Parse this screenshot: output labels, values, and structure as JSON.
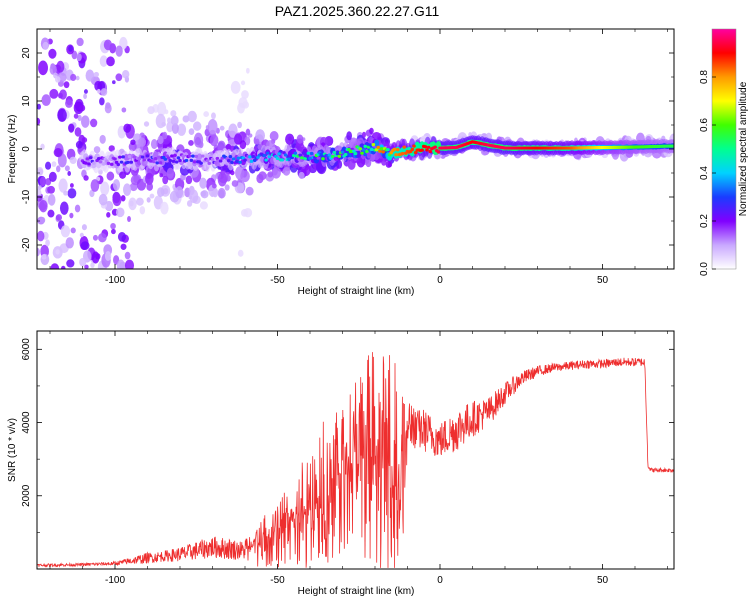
{
  "title": "PAZ1.2025.360.22.27.G11",
  "chart_data": [
    {
      "type": "heatmap",
      "xlabel": "Height of straight line (km)",
      "ylabel": "Frequency (Hz)",
      "xlim": [
        -124,
        72
      ],
      "ylim": [
        -25,
        25
      ],
      "xticks": [
        -100,
        -50,
        0,
        50
      ],
      "yticks": [
        -20,
        -10,
        0,
        10,
        20
      ],
      "colorbar": {
        "label": "Normalized spectral amplitude",
        "range": [
          0,
          1
        ],
        "ticks": [
          "0.0",
          "0.2",
          "0.4",
          "0.6",
          "0.8"
        ],
        "colors": [
          "#ffffff",
          "#c9a8ff",
          "#8000ff",
          "#1a3cff",
          "#00d2ff",
          "#00ff90",
          "#40ff00",
          "#ffff00",
          "#ff9a00",
          "#ff0000",
          "#ff00a0"
        ]
      },
      "ridge": {
        "x": [
          -100,
          -90,
          -80,
          -70,
          -60,
          -50,
          -40,
          -30,
          -20,
          -15,
          -10,
          -5,
          0,
          5,
          10,
          15,
          20,
          30,
          40,
          50,
          60,
          70
        ],
        "frequency": [
          -2.5,
          -2.2,
          -2.0,
          -2.3,
          -2.0,
          -1.5,
          -1.5,
          -1.0,
          0.5,
          -1.0,
          0.0,
          0.0,
          0.2,
          0.3,
          1.5,
          0.8,
          0.2,
          0.2,
          0.2,
          0.3,
          0.4,
          0.6
        ],
        "amplitude": [
          0.2,
          0.25,
          0.25,
          0.2,
          0.3,
          0.4,
          0.45,
          0.5,
          0.6,
          0.8,
          0.85,
          0.9,
          0.95,
          0.95,
          0.9,
          0.95,
          0.95,
          0.9,
          0.85,
          0.7,
          0.6,
          0.55
        ]
      }
    },
    {
      "type": "line",
      "xlabel": "Height of straight line (km)",
      "ylabel": "SNR (10 * v/v)",
      "xlim": [
        -124,
        72
      ],
      "ylim": [
        0,
        6500
      ],
      "xticks": [
        -100,
        -50,
        0,
        50
      ],
      "yticks": [
        2000,
        4000,
        6000
      ],
      "color": "#ee2e2e",
      "series": [
        {
          "name": "SNR",
          "x": [
            -124,
            -110,
            -100,
            -90,
            -85,
            -80,
            -75,
            -70,
            -65,
            -60,
            -55,
            -50,
            -45,
            -40,
            -35,
            -30,
            -25,
            -20,
            -15,
            -12,
            -10,
            -5,
            0,
            5,
            10,
            15,
            20,
            25,
            30,
            35,
            40,
            45,
            50,
            55,
            60,
            63,
            64,
            65,
            70,
            72
          ],
          "y": [
            100,
            120,
            150,
            300,
            350,
            400,
            500,
            600,
            550,
            500,
            700,
            1000,
            1400,
            1700,
            2100,
            2800,
            3000,
            3100,
            2800,
            2600,
            3800,
            3800,
            3500,
            3800,
            4100,
            4300,
            4800,
            5200,
            5400,
            5500,
            5550,
            5600,
            5600,
            5650,
            5650,
            5650,
            2800,
            2700,
            2700,
            2700
          ],
          "noise": [
            40,
            40,
            50,
            150,
            150,
            200,
            250,
            300,
            300,
            250,
            400,
            600,
            800,
            1100,
            1300,
            1500,
            1700,
            1900,
            1900,
            1700,
            500,
            600,
            500,
            600,
            500,
            400,
            300,
            200,
            150,
            120,
            120,
            120,
            120,
            120,
            120,
            120,
            60,
            60,
            60,
            60
          ]
        }
      ]
    }
  ]
}
